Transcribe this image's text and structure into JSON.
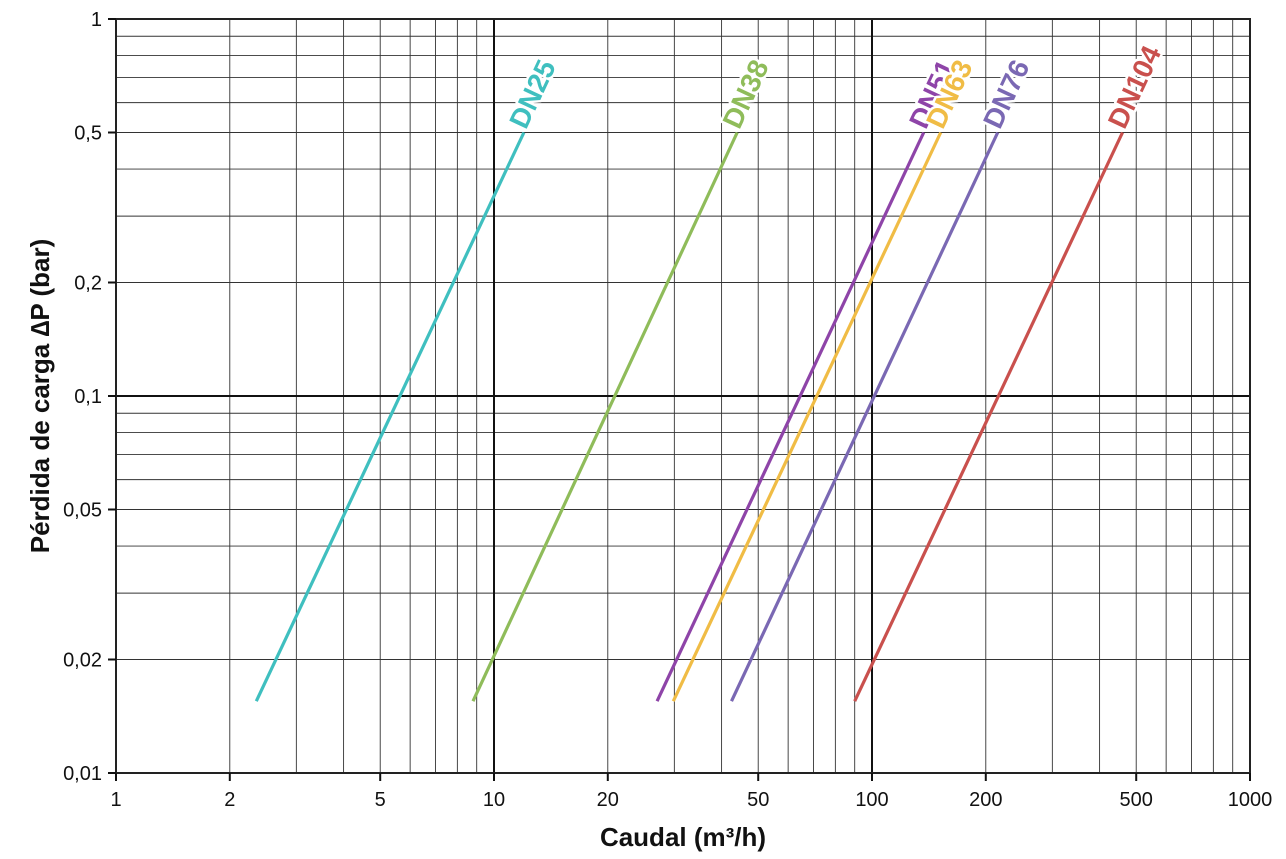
{
  "chart_data": {
    "type": "line",
    "title": "",
    "xlabel": "Caudal (m³/h)",
    "ylabel": "Pérdida de carga ∆P  (bar)",
    "xscale": "log",
    "yscale": "log",
    "xlim": [
      1,
      1000
    ],
    "ylim": [
      0.01,
      1
    ],
    "grid": true,
    "legend": "inline labels at end of each line",
    "x_ticks": [
      {
        "value": 1,
        "label": "1"
      },
      {
        "value": 2,
        "label": "2"
      },
      {
        "value": 5,
        "label": "5"
      },
      {
        "value": 10,
        "label": "10"
      },
      {
        "value": 20,
        "label": "20"
      },
      {
        "value": 50,
        "label": "50"
      },
      {
        "value": 100,
        "label": "100"
      },
      {
        "value": 200,
        "label": "200"
      },
      {
        "value": 500,
        "label": "500"
      },
      {
        "value": 1000,
        "label": "1000"
      }
    ],
    "y_ticks": [
      {
        "value": 0.01,
        "label": "0,01"
      },
      {
        "value": 0.02,
        "label": "0,02"
      },
      {
        "value": 0.05,
        "label": "0,05"
      },
      {
        "value": 0.1,
        "label": "0,1"
      },
      {
        "value": 0.2,
        "label": "0,2"
      },
      {
        "value": 0.5,
        "label": "0,5"
      },
      {
        "value": 1,
        "label": "1"
      }
    ],
    "series": [
      {
        "name": "DN25",
        "color": "#3fbfbf",
        "x": [
          2.35,
          12.0
        ],
        "y": [
          0.0155,
          0.5
        ]
      },
      {
        "name": "DN38",
        "color": "#8fbc5a",
        "x": [
          8.8,
          44.0
        ],
        "y": [
          0.0155,
          0.5
        ]
      },
      {
        "name": "DN51",
        "color": "#8e44a8",
        "x": [
          27.0,
          137.0
        ],
        "y": [
          0.0155,
          0.5
        ]
      },
      {
        "name": "DN63",
        "color": "#f0bc45",
        "x": [
          29.8,
          152.0
        ],
        "y": [
          0.0155,
          0.5
        ]
      },
      {
        "name": "DN76",
        "color": "#7a68b3",
        "x": [
          42.5,
          215.0
        ],
        "y": [
          0.0155,
          0.5
        ]
      },
      {
        "name": "DN104",
        "color": "#c9504d",
        "x": [
          90.0,
          460.0
        ],
        "y": [
          0.0155,
          0.5
        ]
      }
    ]
  }
}
